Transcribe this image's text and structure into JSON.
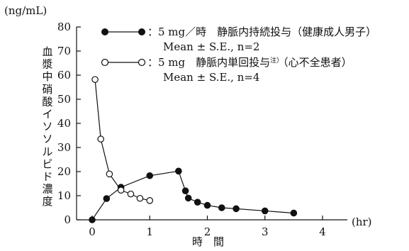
{
  "chart_data": {
    "type": "line",
    "y_unit": "(ng/mL)",
    "x_unit": "(hr)",
    "xlabel": "時　間",
    "ylabel": "血漿中硝酸イソソルビド濃度",
    "xlim": [
      0,
      4
    ],
    "ylim": [
      0,
      80
    ],
    "x_ticks": [
      0,
      1,
      2,
      3,
      4
    ],
    "y_ticks": [
      0,
      10,
      20,
      30,
      40,
      50,
      60,
      70,
      80
    ],
    "grid": false,
    "legend_position": "top-right",
    "series": [
      {
        "marker": "filled-circle",
        "legend_line1": "：5 mg／時　静脈内持続投与（健康成人男子）",
        "legend_line2": "Mean ± S.E., n=2",
        "points": [
          [
            0,
            0
          ],
          [
            0.25,
            8.8
          ],
          [
            0.5,
            13.5
          ],
          [
            1.0,
            18.3
          ],
          [
            1.5,
            20.2
          ],
          [
            1.62,
            12.0
          ],
          [
            1.67,
            9.0
          ],
          [
            1.83,
            7.3
          ],
          [
            2.0,
            6.0
          ],
          [
            2.25,
            5.0
          ],
          [
            2.5,
            4.6
          ],
          [
            3.0,
            3.7
          ],
          [
            3.5,
            2.8
          ]
        ]
      },
      {
        "marker": "open-circle",
        "legend_line1": "：5 mg　静脈内単回投与",
        "legend_superscript": "注）",
        "legend_line1_tail": "（心不全患者）",
        "legend_line2": "Mean ± S.E., n=4",
        "points": [
          [
            0.05,
            58.2
          ],
          [
            0.15,
            33.5
          ],
          [
            0.3,
            19.0
          ],
          [
            0.5,
            12.3
          ],
          [
            0.67,
            10.7
          ],
          [
            0.83,
            8.9
          ],
          [
            1.0,
            8.0
          ]
        ]
      }
    ]
  }
}
